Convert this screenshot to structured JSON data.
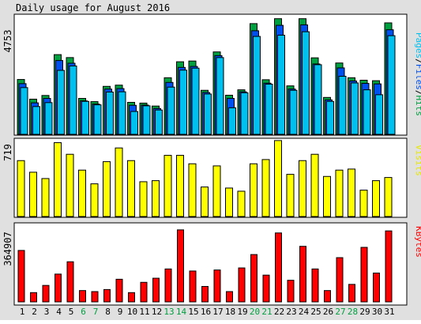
{
  "title": "Daily usage for August 2016",
  "colors": {
    "background": "#e0e0e0",
    "panel": "#ffffff",
    "hits": "#00a040",
    "files": "#0050f0",
    "pages": "#00c0f0",
    "visits": "#ffff00",
    "kbytes": "#ff0000",
    "weekend_label": "#00a040",
    "weekday_label": "#000000"
  },
  "chart_data": [
    {
      "type": "bar",
      "name": "hits-files-pages",
      "ylabel_max": "4753",
      "legend": {
        "pages": "Pages",
        "sep1": "/",
        "files": "Files",
        "sep2": "/",
        "hits": "Hits"
      },
      "ylim": [
        0,
        4753
      ],
      "categories": [
        "1",
        "2",
        "3",
        "4",
        "5",
        "6",
        "7",
        "8",
        "9",
        "10",
        "11",
        "12",
        "13",
        "14",
        "15",
        "16",
        "17",
        "18",
        "19",
        "20",
        "21",
        "22",
        "23",
        "24",
        "25",
        "26",
        "27",
        "28",
        "29",
        "30",
        "31"
      ],
      "weekend_days": [
        "6",
        "7",
        "13",
        "14",
        "20",
        "21",
        "27",
        "28"
      ],
      "series": [
        {
          "name": "Hits",
          "values": [
            2230,
            1430,
            1580,
            3240,
            3120,
            1460,
            1330,
            1950,
            2000,
            1300,
            1270,
            1150,
            2300,
            2950,
            2980,
            1790,
            3350,
            1590,
            1810,
            4500,
            2220,
            4700,
            1970,
            4700,
            3110,
            1500,
            2900,
            2300,
            2200,
            2180,
            4530
          ]
        },
        {
          "name": "Files",
          "values": [
            2060,
            1280,
            1460,
            3000,
            2890,
            1360,
            1230,
            1840,
            1860,
            1180,
            1190,
            1050,
            2110,
            2720,
            2760,
            1700,
            3200,
            1460,
            1730,
            4210,
            2080,
            4430,
            1840,
            4450,
            2860,
            1400,
            2700,
            2170,
            2070,
            2050,
            4250
          ]
        },
        {
          "name": "Pages",
          "values": [
            1900,
            1130,
            1290,
            2600,
            2780,
            1340,
            1200,
            1720,
            1730,
            930,
            1160,
            990,
            1920,
            2610,
            2690,
            1640,
            3120,
            1080,
            1690,
            3980,
            2040,
            4030,
            1790,
            4170,
            2830,
            1340,
            2360,
            2090,
            1810,
            1610,
            4010
          ]
        }
      ]
    },
    {
      "type": "bar",
      "name": "visits",
      "ylabel_max": "719",
      "legend": {
        "visits": "Visits"
      },
      "ylim": [
        0,
        719
      ],
      "categories": [
        "1",
        "2",
        "3",
        "4",
        "5",
        "6",
        "7",
        "8",
        "9",
        "10",
        "11",
        "12",
        "13",
        "14",
        "15",
        "16",
        "17",
        "18",
        "19",
        "20",
        "21",
        "22",
        "23",
        "24",
        "25",
        "26",
        "27",
        "28",
        "29",
        "30",
        "31"
      ],
      "series": [
        {
          "name": "Visits",
          "values": [
            530,
            420,
            360,
            700,
            590,
            440,
            310,
            520,
            650,
            530,
            330,
            340,
            580,
            580,
            500,
            280,
            480,
            270,
            240,
            500,
            540,
            720,
            400,
            530,
            590,
            380,
            440,
            450,
            250,
            340,
            370
          ]
        }
      ]
    },
    {
      "type": "bar",
      "name": "kbytes",
      "ylabel_max": "364907",
      "legend": {
        "kbytes": "KBytes"
      },
      "ylim": [
        0,
        364907
      ],
      "categories": [
        "1",
        "2",
        "3",
        "4",
        "5",
        "6",
        "7",
        "8",
        "9",
        "10",
        "11",
        "12",
        "13",
        "14",
        "15",
        "16",
        "17",
        "18",
        "19",
        "20",
        "21",
        "22",
        "23",
        "24",
        "25",
        "26",
        "27",
        "28",
        "29",
        "30",
        "31"
      ],
      "series": [
        {
          "name": "KBytes",
          "values": [
            250000,
            45000,
            80000,
            135000,
            195000,
            55000,
            50000,
            60000,
            110000,
            45000,
            95000,
            115000,
            160000,
            350000,
            150000,
            75000,
            155000,
            50000,
            165000,
            230000,
            130000,
            335000,
            105000,
            270000,
            160000,
            55000,
            215000,
            85000,
            265000,
            140000,
            345000
          ]
        }
      ]
    }
  ]
}
